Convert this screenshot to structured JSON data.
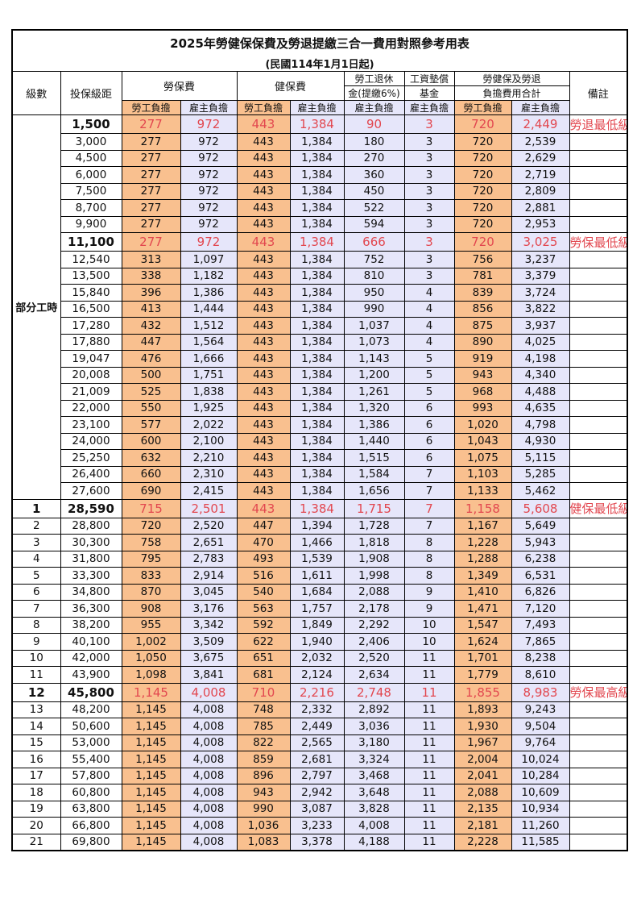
{
  "title": "2025年勞健保保費及勞退提繳三合一費用對照參考用表",
  "subtitle": "(民國114年1月1日起)",
  "headers": {
    "level": "級數",
    "insured_amount": "投保級距",
    "labor_insurance": "勞保費",
    "health_insurance": "健保費",
    "pension_line1": "勞工退休",
    "pension_line2": "金(提繳6%)",
    "wage_fund_line1": "工資墊償",
    "wage_fund_line2": "基金",
    "total_line1": "勞健保及勞退",
    "total_line2": "負擔費用合計",
    "remarks": "備註",
    "worker": "勞工負擔",
    "employer": "雇主負擔"
  },
  "part_time_label": "部分工時",
  "colors": {
    "worker_bg": "#f9c08f",
    "employer_bg": "#e6e6fa",
    "highlight_text": "#e2474f"
  },
  "rows": [
    {
      "level": "",
      "amount": "1,500",
      "lw": "277",
      "le": "972",
      "hw": "443",
      "he": "1,384",
      "pension": "90",
      "wage": "3",
      "tw": "720",
      "te": "2,449",
      "note": "勞退最低級距",
      "hl": true
    },
    {
      "level": "",
      "amount": "3,000",
      "lw": "277",
      "le": "972",
      "hw": "443",
      "he": "1,384",
      "pension": "180",
      "wage": "3",
      "tw": "720",
      "te": "2,539",
      "note": ""
    },
    {
      "level": "",
      "amount": "4,500",
      "lw": "277",
      "le": "972",
      "hw": "443",
      "he": "1,384",
      "pension": "270",
      "wage": "3",
      "tw": "720",
      "te": "2,629",
      "note": ""
    },
    {
      "level": "",
      "amount": "6,000",
      "lw": "277",
      "le": "972",
      "hw": "443",
      "he": "1,384",
      "pension": "360",
      "wage": "3",
      "tw": "720",
      "te": "2,719",
      "note": ""
    },
    {
      "level": "",
      "amount": "7,500",
      "lw": "277",
      "le": "972",
      "hw": "443",
      "he": "1,384",
      "pension": "450",
      "wage": "3",
      "tw": "720",
      "te": "2,809",
      "note": ""
    },
    {
      "level": "",
      "amount": "8,700",
      "lw": "277",
      "le": "972",
      "hw": "443",
      "he": "1,384",
      "pension": "522",
      "wage": "3",
      "tw": "720",
      "te": "2,881",
      "note": ""
    },
    {
      "level": "",
      "amount": "9,900",
      "lw": "277",
      "le": "972",
      "hw": "443",
      "he": "1,384",
      "pension": "594",
      "wage": "3",
      "tw": "720",
      "te": "2,953",
      "note": ""
    },
    {
      "level": "",
      "amount": "11,100",
      "lw": "277",
      "le": "972",
      "hw": "443",
      "he": "1,384",
      "pension": "666",
      "wage": "3",
      "tw": "720",
      "te": "3,025",
      "note": "勞保最低級距",
      "hl": true
    },
    {
      "level": "",
      "amount": "12,540",
      "lw": "313",
      "le": "1,097",
      "hw": "443",
      "he": "1,384",
      "pension": "752",
      "wage": "3",
      "tw": "756",
      "te": "3,237",
      "note": ""
    },
    {
      "level": "",
      "amount": "13,500",
      "lw": "338",
      "le": "1,182",
      "hw": "443",
      "he": "1,384",
      "pension": "810",
      "wage": "3",
      "tw": "781",
      "te": "3,379",
      "note": ""
    },
    {
      "level": "",
      "amount": "15,840",
      "lw": "396",
      "le": "1,386",
      "hw": "443",
      "he": "1,384",
      "pension": "950",
      "wage": "4",
      "tw": "839",
      "te": "3,724",
      "note": ""
    },
    {
      "level": "",
      "amount": "16,500",
      "lw": "413",
      "le": "1,444",
      "hw": "443",
      "he": "1,384",
      "pension": "990",
      "wage": "4",
      "tw": "856",
      "te": "3,822",
      "note": ""
    },
    {
      "level": "",
      "amount": "17,280",
      "lw": "432",
      "le": "1,512",
      "hw": "443",
      "he": "1,384",
      "pension": "1,037",
      "wage": "4",
      "tw": "875",
      "te": "3,937",
      "note": ""
    },
    {
      "level": "",
      "amount": "17,880",
      "lw": "447",
      "le": "1,564",
      "hw": "443",
      "he": "1,384",
      "pension": "1,073",
      "wage": "4",
      "tw": "890",
      "te": "4,025",
      "note": ""
    },
    {
      "level": "",
      "amount": "19,047",
      "lw": "476",
      "le": "1,666",
      "hw": "443",
      "he": "1,384",
      "pension": "1,143",
      "wage": "5",
      "tw": "919",
      "te": "4,198",
      "note": ""
    },
    {
      "level": "",
      "amount": "20,008",
      "lw": "500",
      "le": "1,751",
      "hw": "443",
      "he": "1,384",
      "pension": "1,200",
      "wage": "5",
      "tw": "943",
      "te": "4,340",
      "note": ""
    },
    {
      "level": "",
      "amount": "21,009",
      "lw": "525",
      "le": "1,838",
      "hw": "443",
      "he": "1,384",
      "pension": "1,261",
      "wage": "5",
      "tw": "968",
      "te": "4,488",
      "note": ""
    },
    {
      "level": "",
      "amount": "22,000",
      "lw": "550",
      "le": "1,925",
      "hw": "443",
      "he": "1,384",
      "pension": "1,320",
      "wage": "6",
      "tw": "993",
      "te": "4,635",
      "note": ""
    },
    {
      "level": "",
      "amount": "23,100",
      "lw": "577",
      "le": "2,022",
      "hw": "443",
      "he": "1,384",
      "pension": "1,386",
      "wage": "6",
      "tw": "1,020",
      "te": "4,798",
      "note": ""
    },
    {
      "level": "",
      "amount": "24,000",
      "lw": "600",
      "le": "2,100",
      "hw": "443",
      "he": "1,384",
      "pension": "1,440",
      "wage": "6",
      "tw": "1,043",
      "te": "4,930",
      "note": ""
    },
    {
      "level": "",
      "amount": "25,250",
      "lw": "632",
      "le": "2,210",
      "hw": "443",
      "he": "1,384",
      "pension": "1,515",
      "wage": "6",
      "tw": "1,075",
      "te": "5,115",
      "note": ""
    },
    {
      "level": "",
      "amount": "26,400",
      "lw": "660",
      "le": "2,310",
      "hw": "443",
      "he": "1,384",
      "pension": "1,584",
      "wage": "7",
      "tw": "1,103",
      "te": "5,285",
      "note": ""
    },
    {
      "level": "",
      "amount": "27,600",
      "lw": "690",
      "le": "2,415",
      "hw": "443",
      "he": "1,384",
      "pension": "1,656",
      "wage": "7",
      "tw": "1,133",
      "te": "5,462",
      "note": ""
    },
    {
      "level": "1",
      "amount": "28,590",
      "lw": "715",
      "le": "2,501",
      "hw": "443",
      "he": "1,384",
      "pension": "1,715",
      "wage": "7",
      "tw": "1,158",
      "te": "5,608",
      "note": "健保最低級距",
      "hl": true
    },
    {
      "level": "2",
      "amount": "28,800",
      "lw": "720",
      "le": "2,520",
      "hw": "447",
      "he": "1,394",
      "pension": "1,728",
      "wage": "7",
      "tw": "1,167",
      "te": "5,649",
      "note": ""
    },
    {
      "level": "3",
      "amount": "30,300",
      "lw": "758",
      "le": "2,651",
      "hw": "470",
      "he": "1,466",
      "pension": "1,818",
      "wage": "8",
      "tw": "1,228",
      "te": "5,943",
      "note": ""
    },
    {
      "level": "4",
      "amount": "31,800",
      "lw": "795",
      "le": "2,783",
      "hw": "493",
      "he": "1,539",
      "pension": "1,908",
      "wage": "8",
      "tw": "1,288",
      "te": "6,238",
      "note": ""
    },
    {
      "level": "5",
      "amount": "33,300",
      "lw": "833",
      "le": "2,914",
      "hw": "516",
      "he": "1,611",
      "pension": "1,998",
      "wage": "8",
      "tw": "1,349",
      "te": "6,531",
      "note": ""
    },
    {
      "level": "6",
      "amount": "34,800",
      "lw": "870",
      "le": "3,045",
      "hw": "540",
      "he": "1,684",
      "pension": "2,088",
      "wage": "9",
      "tw": "1,410",
      "te": "6,826",
      "note": ""
    },
    {
      "level": "7",
      "amount": "36,300",
      "lw": "908",
      "le": "3,176",
      "hw": "563",
      "he": "1,757",
      "pension": "2,178",
      "wage": "9",
      "tw": "1,471",
      "te": "7,120",
      "note": ""
    },
    {
      "level": "8",
      "amount": "38,200",
      "lw": "955",
      "le": "3,342",
      "hw": "592",
      "he": "1,849",
      "pension": "2,292",
      "wage": "10",
      "tw": "1,547",
      "te": "7,493",
      "note": ""
    },
    {
      "level": "9",
      "amount": "40,100",
      "lw": "1,002",
      "le": "3,509",
      "hw": "622",
      "he": "1,940",
      "pension": "2,406",
      "wage": "10",
      "tw": "1,624",
      "te": "7,865",
      "note": ""
    },
    {
      "level": "10",
      "amount": "42,000",
      "lw": "1,050",
      "le": "3,675",
      "hw": "651",
      "he": "2,032",
      "pension": "2,520",
      "wage": "11",
      "tw": "1,701",
      "te": "8,238",
      "note": ""
    },
    {
      "level": "11",
      "amount": "43,900",
      "lw": "1,098",
      "le": "3,841",
      "hw": "681",
      "he": "2,124",
      "pension": "2,634",
      "wage": "11",
      "tw": "1,779",
      "te": "8,610",
      "note": ""
    },
    {
      "level": "12",
      "amount": "45,800",
      "lw": "1,145",
      "le": "4,008",
      "hw": "710",
      "he": "2,216",
      "pension": "2,748",
      "wage": "11",
      "tw": "1,855",
      "te": "8,983",
      "note": "勞保最高級距",
      "hl": true
    },
    {
      "level": "13",
      "amount": "48,200",
      "lw": "1,145",
      "le": "4,008",
      "hw": "748",
      "he": "2,332",
      "pension": "2,892",
      "wage": "11",
      "tw": "1,893",
      "te": "9,243",
      "note": ""
    },
    {
      "level": "14",
      "amount": "50,600",
      "lw": "1,145",
      "le": "4,008",
      "hw": "785",
      "he": "2,449",
      "pension": "3,036",
      "wage": "11",
      "tw": "1,930",
      "te": "9,504",
      "note": ""
    },
    {
      "level": "15",
      "amount": "53,000",
      "lw": "1,145",
      "le": "4,008",
      "hw": "822",
      "he": "2,565",
      "pension": "3,180",
      "wage": "11",
      "tw": "1,967",
      "te": "9,764",
      "note": ""
    },
    {
      "level": "16",
      "amount": "55,400",
      "lw": "1,145",
      "le": "4,008",
      "hw": "859",
      "he": "2,681",
      "pension": "3,324",
      "wage": "11",
      "tw": "2,004",
      "te": "10,024",
      "note": ""
    },
    {
      "level": "17",
      "amount": "57,800",
      "lw": "1,145",
      "le": "4,008",
      "hw": "896",
      "he": "2,797",
      "pension": "3,468",
      "wage": "11",
      "tw": "2,041",
      "te": "10,284",
      "note": ""
    },
    {
      "level": "18",
      "amount": "60,800",
      "lw": "1,145",
      "le": "4,008",
      "hw": "943",
      "he": "2,942",
      "pension": "3,648",
      "wage": "11",
      "tw": "2,088",
      "te": "10,609",
      "note": ""
    },
    {
      "level": "19",
      "amount": "63,800",
      "lw": "1,145",
      "le": "4,008",
      "hw": "990",
      "he": "3,087",
      "pension": "3,828",
      "wage": "11",
      "tw": "2,135",
      "te": "10,934",
      "note": ""
    },
    {
      "level": "20",
      "amount": "66,800",
      "lw": "1,145",
      "le": "4,008",
      "hw": "1,036",
      "he": "3,233",
      "pension": "4,008",
      "wage": "11",
      "tw": "2,181",
      "te": "11,260",
      "note": ""
    },
    {
      "level": "21",
      "amount": "69,800",
      "lw": "1,145",
      "le": "4,008",
      "hw": "1,083",
      "he": "3,378",
      "pension": "4,188",
      "wage": "11",
      "tw": "2,228",
      "te": "11,585",
      "note": ""
    }
  ]
}
